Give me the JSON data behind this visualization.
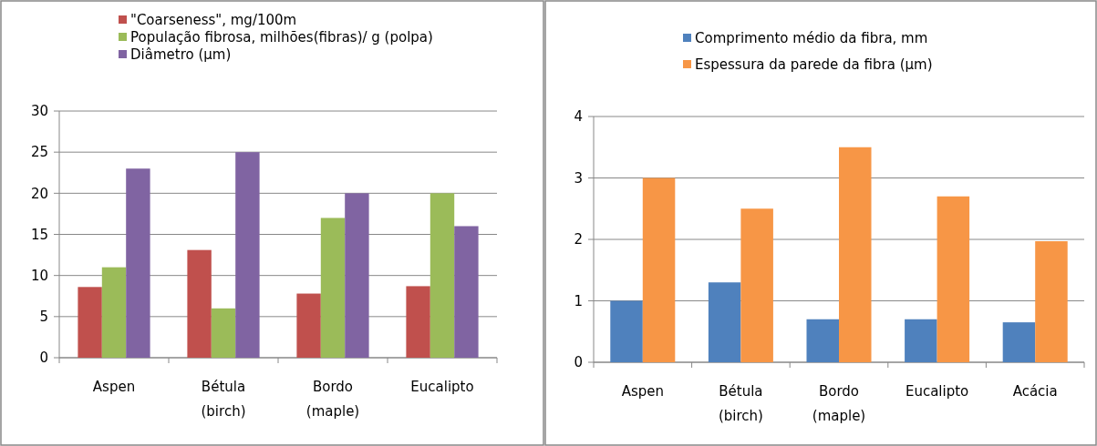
{
  "chart_data": [
    {
      "type": "bar",
      "categories": [
        "Aspen",
        "Bétula\n(birch)",
        "Bordo\n(maple)",
        "Eucalipto"
      ],
      "series": [
        {
          "name": "\"Coarseness\", mg/100m",
          "color": "#c0504d",
          "values": [
            8.6,
            13.1,
            7.8,
            8.7
          ]
        },
        {
          "name": "População fibrosa, milhões(fibras)/ g (polpa)",
          "color": "#9bbb59",
          "values": [
            11,
            6,
            17,
            20
          ]
        },
        {
          "name": "Diâmetro (µm)",
          "color": "#8064a2",
          "values": [
            23,
            25,
            20,
            16
          ]
        }
      ],
      "ylim": [
        0,
        30
      ],
      "yticks": [
        0,
        5,
        10,
        15,
        20,
        25,
        30
      ],
      "grid": "y",
      "legend": "top"
    },
    {
      "type": "bar",
      "categories": [
        "Aspen",
        "Bétula\n(birch)",
        "Bordo\n(maple)",
        "Eucalipto",
        "Acácia"
      ],
      "series": [
        {
          "name": "Comprimento médio da fibra, mm",
          "color": "#4f81bd",
          "values": [
            1.0,
            1.3,
            0.7,
            0.7,
            0.65
          ]
        },
        {
          "name": "Espessura da parede da fibra (µm)",
          "color": "#f79646",
          "values": [
            3.0,
            2.5,
            3.5,
            2.7,
            1.97
          ]
        }
      ],
      "ylim": [
        0,
        4
      ],
      "yticks": [
        0,
        1,
        2,
        3,
        4
      ],
      "grid": "y",
      "legend": "top"
    }
  ]
}
